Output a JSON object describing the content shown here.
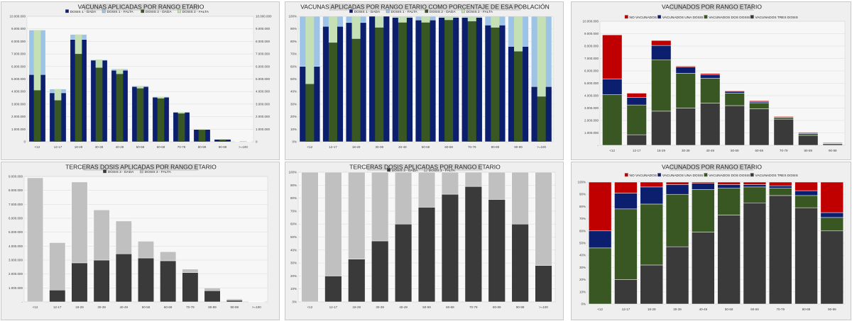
{
  "colors": {
    "navy": "#0b1f6e",
    "lightblue": "#9dc3e6",
    "darkgreen": "#385723",
    "lightgreen": "#c5e0b4",
    "dark": "#3a3a3a",
    "lightgray": "#c0c0c0",
    "red": "#c00000",
    "panel_bg": "#efefef",
    "title_bg": "#d4d4d4"
  },
  "chart_data": [
    {
      "type": "bar",
      "title": "VACUNAS APLICADAS POR RANGO ETARIO",
      "categories": [
        "<12",
        "12-17",
        "18-29",
        "30-39",
        "40-49",
        "50-59",
        "60-69",
        "70-79",
        "80-89",
        "90-99",
        ">=100"
      ],
      "legend": [
        "DOSIS 1 - DADA",
        "DOSIS 1 - FALTA",
        "DOSIS 2 - DADA",
        "DOSIS 2 - FALTA"
      ],
      "legend_position": "top",
      "ylim": [
        0,
        10000000
      ],
      "yticks": [
        "0",
        "1.000.000",
        "2.000.000",
        "3.000.000",
        "4.000.000",
        "5.000.000",
        "6.000.000",
        "7.000.000",
        "8.000.000",
        "9.000.000",
        "10.000.000"
      ],
      "y2ticks": [
        "0",
        "1.000.000",
        "2.000.000",
        "3.000.000",
        "4.000.000",
        "5.000.000",
        "6.000.000",
        "7.000.000",
        "8.000.000",
        "9.000.000",
        "10.000.000"
      ],
      "series": [
        {
          "name": "DOSIS 1 - DADA",
          "values": [
            5350000,
            3900000,
            8150000,
            6500000,
            5700000,
            4400000,
            3550000,
            2350000,
            980000,
            190000,
            20000
          ]
        },
        {
          "name": "DOSIS 1 - FALTA",
          "values": [
            3550000,
            300000,
            400000,
            50000,
            100000,
            50000,
            40000,
            20000,
            20000,
            10000,
            8000
          ]
        },
        {
          "name": "DOSIS 2 - DADA",
          "values": [
            4100000,
            3300000,
            7000000,
            5900000,
            5400000,
            4250000,
            3450000,
            2250000,
            950000,
            180000,
            18000
          ]
        },
        {
          "name": "DOSIS 2 - FALTA",
          "values": [
            4800000,
            900000,
            1550000,
            650000,
            400000,
            200000,
            140000,
            120000,
            50000,
            20000,
            10000
          ]
        }
      ]
    },
    {
      "type": "bar",
      "title": "VACUNAS APLICADAS POR RANGO ETARIO COMO PORCENTAJE DE ESA POBLACIÓN",
      "categories": [
        "<12",
        "12-17",
        "18-29",
        "30-39",
        "40-49",
        "50-59",
        "60-69",
        "70-79",
        "80-89",
        "90-99",
        ">=100"
      ],
      "legend": [
        "DOSIS 1 - DADA",
        "DOSIS 1 - FALTA",
        "DOSIS 2 - DADA",
        "DOSIS 2 - FALTA"
      ],
      "legend_position": "top",
      "ylim": [
        0,
        100
      ],
      "yticks": [
        "0%",
        "10%",
        "20%",
        "30%",
        "40%",
        "50%",
        "60%",
        "70%",
        "80%",
        "90%",
        "100%"
      ],
      "series": [
        {
          "name": "DOSIS 1 - DADA",
          "values": [
            60,
            92,
            95,
            100,
            99,
            97,
            99,
            99,
            93,
            76,
            44
          ]
        },
        {
          "name": "DOSIS 1 - FALTA",
          "values": [
            40,
            8,
            5,
            0,
            1,
            3,
            1,
            1,
            7,
            24,
            56
          ]
        },
        {
          "name": "DOSIS 2 - DADA",
          "values": [
            46,
            79,
            82,
            91,
            95,
            95,
            97,
            96,
            91,
            72,
            36
          ]
        },
        {
          "name": "DOSIS 2 - FALTA",
          "values": [
            54,
            21,
            18,
            9,
            5,
            5,
            3,
            4,
            9,
            28,
            64
          ]
        }
      ]
    },
    {
      "type": "bar",
      "title": "VACUNADOS POR RANGO ETARIO",
      "categories": [
        "<12",
        "12-17",
        "18-29",
        "30-39",
        "40-49",
        "50-59",
        "60-69",
        "70-79",
        "80-89",
        "90-99"
      ],
      "legend": [
        "NO VACUNADOS",
        "VACUNADOS UNA DOSIS",
        "VACUNADOS DOS DOSIS",
        "VACUNADOS TRES DOSIS"
      ],
      "legend_position": "top",
      "ylim": [
        0,
        10000000
      ],
      "yticks": [
        "-",
        "1.000.000",
        "2.000.000",
        "3.000.000",
        "4.000.000",
        "5.000.000",
        "6.000.000",
        "7.000.000",
        "8.000.000",
        "9.000.000",
        "10.000.000"
      ],
      "series": [
        {
          "name": "VACUNADOS TRES DOSIS",
          "values": [
            0,
            850000,
            2750000,
            3000000,
            3400000,
            3200000,
            2950000,
            2100000,
            800000,
            120000
          ]
        },
        {
          "name": "VACUNADOS DOS DOSIS",
          "values": [
            4100000,
            2400000,
            4150000,
            2800000,
            2000000,
            1000000,
            480000,
            130000,
            130000,
            40000
          ]
        },
        {
          "name": "VACUNADOS UNA DOSIS",
          "values": [
            1250000,
            600000,
            1150000,
            500000,
            300000,
            150000,
            100000,
            60000,
            50000,
            20000
          ]
        },
        {
          "name": "NO VACUNADOS",
          "values": [
            3550000,
            350000,
            400000,
            80000,
            80000,
            50000,
            60000,
            50000,
            70000,
            50000
          ]
        }
      ]
    },
    {
      "type": "bar",
      "title": "TERCERAS DOSIS APLICADAS POR RANGO ETARIO",
      "categories": [
        "<12",
        "12-17",
        "18-29",
        "30-39",
        "40-49",
        "50-59",
        "60-69",
        "70-79",
        "80-89",
        "90-99",
        ">=100"
      ],
      "legend": [
        "DOSIS 3 - DADA",
        "DOSIS 3 - FALTA"
      ],
      "legend_position": "top",
      "ylim": [
        0,
        9000000
      ],
      "yticks": [
        "-",
        "1.000.000",
        "2.000.000",
        "3.000.000",
        "4.000.000",
        "5.000.000",
        "6.000.000",
        "7.000.000",
        "8.000.000",
        "9.000.000"
      ],
      "series": [
        {
          "name": "DOSIS 3 - DADA",
          "values": [
            0,
            850000,
            2800000,
            3000000,
            3450000,
            3150000,
            2950000,
            2100000,
            800000,
            120000,
            5000
          ]
        },
        {
          "name": "DOSIS 3 - FALTA",
          "values": [
            8900000,
            3400000,
            5800000,
            3600000,
            2350000,
            1200000,
            650000,
            250000,
            200000,
            100000,
            20000
          ]
        }
      ]
    },
    {
      "type": "bar",
      "title": "TERCERAS DOSIS APLICADAS POR RANGO ETARIO",
      "categories": [
        "<12",
        "12-17",
        "18-29",
        "30-39",
        "40-49",
        "50-59",
        "60-69",
        "70-79",
        "80-89",
        "90-99",
        ">=100"
      ],
      "legend": [
        "DOSIS 3 - DADA",
        "DOSIS 3 - FALTA"
      ],
      "legend_position": "top",
      "ylim": [
        0,
        100
      ],
      "yticks": [
        "0%",
        "10%",
        "20%",
        "30%",
        "40%",
        "50%",
        "60%",
        "70%",
        "80%",
        "90%",
        "100%"
      ],
      "series": [
        {
          "name": "DOSIS 3 - DADA",
          "values": [
            0,
            20,
            33,
            47,
            60,
            73,
            83,
            89,
            79,
            60,
            28
          ]
        },
        {
          "name": "DOSIS 3 - FALTA",
          "values": [
            100,
            80,
            67,
            53,
            40,
            27,
            17,
            11,
            21,
            40,
            72
          ]
        }
      ]
    },
    {
      "type": "bar",
      "title": "VACUNADOS POR RANGO ETARIO",
      "categories": [
        "<12",
        "12-17",
        "18-29",
        "30-39",
        "40-49",
        "50-59",
        "60-69",
        "70-79",
        "80-89",
        "90-99"
      ],
      "legend": [
        "NO VACUNADOS",
        "VACUNADOS UNA DOSIS",
        "VACUNADOS DOS DOSIS",
        "VACUNADOS TRES DOSIS"
      ],
      "legend_position": "top",
      "ylim": [
        0,
        100
      ],
      "yticks": [
        "0%",
        "10%",
        "20%",
        "30%",
        "40%",
        "50%",
        "60%",
        "70%",
        "80%",
        "90%",
        "100%"
      ],
      "series": [
        {
          "name": "VACUNADOS TRES DOSIS",
          "values": [
            0,
            20,
            32,
            47,
            59,
            73,
            83,
            89,
            79,
            60
          ]
        },
        {
          "name": "VACUNADOS DOS DOSIS",
          "values": [
            46,
            58,
            50,
            43,
            35,
            22,
            13,
            6,
            10,
            11
          ]
        },
        {
          "name": "VACUNADOS UNA DOSIS",
          "values": [
            14,
            13,
            14,
            8,
            5,
            3,
            2,
            2,
            4,
            4
          ]
        },
        {
          "name": "NO VACUNADOS",
          "values": [
            40,
            9,
            4,
            2,
            1,
            2,
            2,
            3,
            7,
            25
          ]
        }
      ]
    }
  ]
}
